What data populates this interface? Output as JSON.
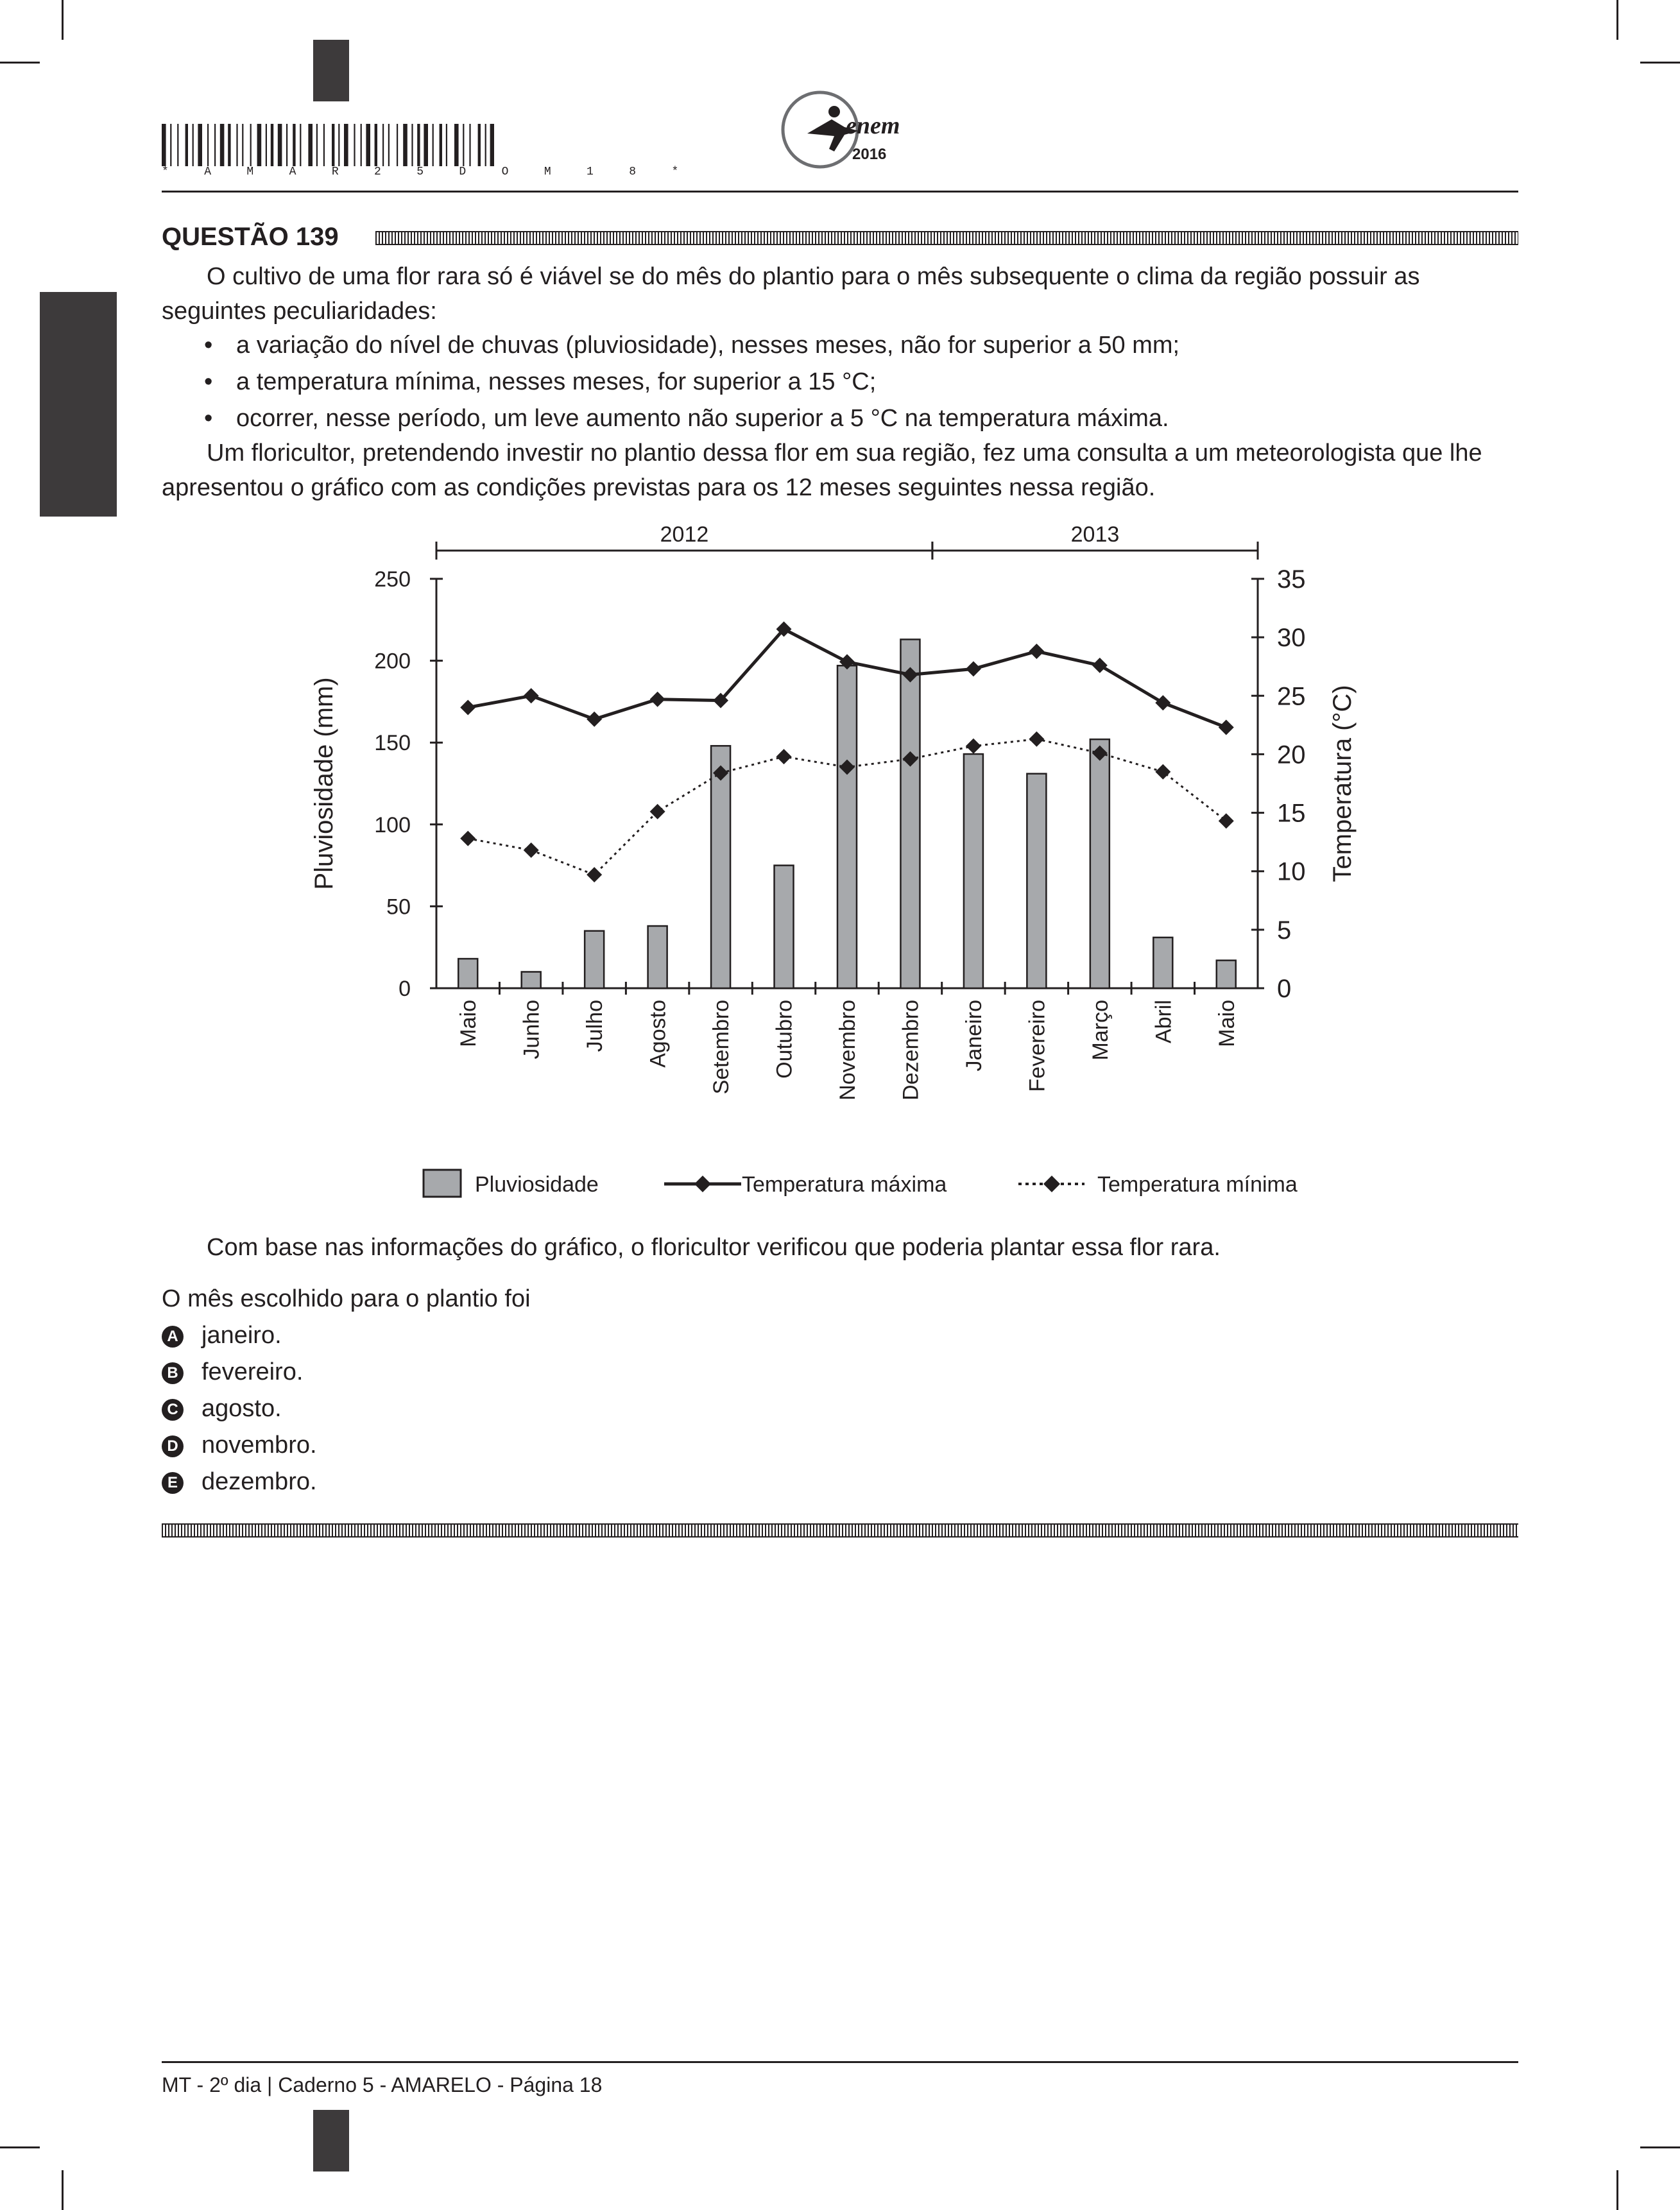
{
  "header": {
    "barcode_text": "* A M A R 2 5 D O M 1 8 *",
    "logo_text": "enem",
    "logo_year": "2016"
  },
  "question": {
    "title": "QUESTÃO 139",
    "intro": "O cultivo de uma flor rara só é viável se do mês do plantio para o mês subsequente o clima da região possuir as seguintes peculiaridades:",
    "bullets": [
      "a variação do nível de chuvas (pluviosidade), nesses meses, não for superior a 50 mm;",
      "a temperatura mínima, nesses meses, for superior a 15 °C;",
      "ocorrer, nesse período, um leve aumento não superior a 5 °C na temperatura máxima."
    ],
    "context": "Um floricultor, pretendendo investir no plantio dessa flor em sua região, fez uma consulta a um meteorologista que lhe apresentou o gráfico com as condições previstas para os 12 meses seguintes nessa região.",
    "conclusion": "Com base nas informações do gráfico, o floricultor verificou que poderia plantar essa flor rara.",
    "prompt": "O mês escolhido para o plantio foi",
    "choices": [
      {
        "letter": "A",
        "text": "janeiro."
      },
      {
        "letter": "B",
        "text": "fevereiro."
      },
      {
        "letter": "C",
        "text": "agosto."
      },
      {
        "letter": "D",
        "text": "novembro."
      },
      {
        "letter": "E",
        "text": "dezembro."
      }
    ]
  },
  "chart_data": {
    "type": "bar",
    "years": [
      {
        "label": "2012",
        "from": 0,
        "to": 7
      },
      {
        "label": "2013",
        "from": 8,
        "to": 12
      }
    ],
    "categories": [
      "Maio",
      "Junho",
      "Julho",
      "Agosto",
      "Setembro",
      "Outubro",
      "Novembro",
      "Dezembro",
      "Janeiro",
      "Fevereiro",
      "Março",
      "Abril",
      "Maio"
    ],
    "series": [
      {
        "name": "Pluviosidade",
        "type": "bar",
        "axis": "left",
        "values": [
          18,
          10,
          35,
          38,
          148,
          75,
          197,
          213,
          143,
          131,
          152,
          31,
          17
        ]
      },
      {
        "name": "Temperatura máxima",
        "type": "line",
        "axis": "right",
        "style": "solid",
        "values": [
          24,
          25,
          23,
          24.7,
          24.6,
          30.7,
          27.9,
          26.8,
          27.3,
          28.8,
          27.6,
          24.4,
          22.3
        ]
      },
      {
        "name": "Temperatura mínima",
        "type": "line",
        "axis": "right",
        "style": "dotted",
        "values": [
          12.8,
          11.8,
          9.7,
          15.1,
          18.4,
          19.8,
          18.9,
          19.6,
          20.7,
          21.3,
          20.1,
          18.5,
          14.3
        ]
      }
    ],
    "ylabel": "Pluviosidade (mm)",
    "ylabel_right": "Temperatura (°C)",
    "ylim": [
      0,
      250
    ],
    "yticks": [
      0,
      50,
      100,
      150,
      200,
      250
    ],
    "ylim_right": [
      0,
      35
    ],
    "yticks_right": [
      0,
      5,
      10,
      15,
      20,
      25,
      30,
      35
    ],
    "legend": [
      "Pluviosidade",
      "Temperatura máxima",
      "Temperatura mínima"
    ],
    "legend_position": "bottom",
    "colors": {
      "bar": "#a7a9ac",
      "ink": "#231f20"
    }
  },
  "footer": {
    "text": "MT - 2º dia | Caderno 5 - AMARELO - Página 18"
  }
}
